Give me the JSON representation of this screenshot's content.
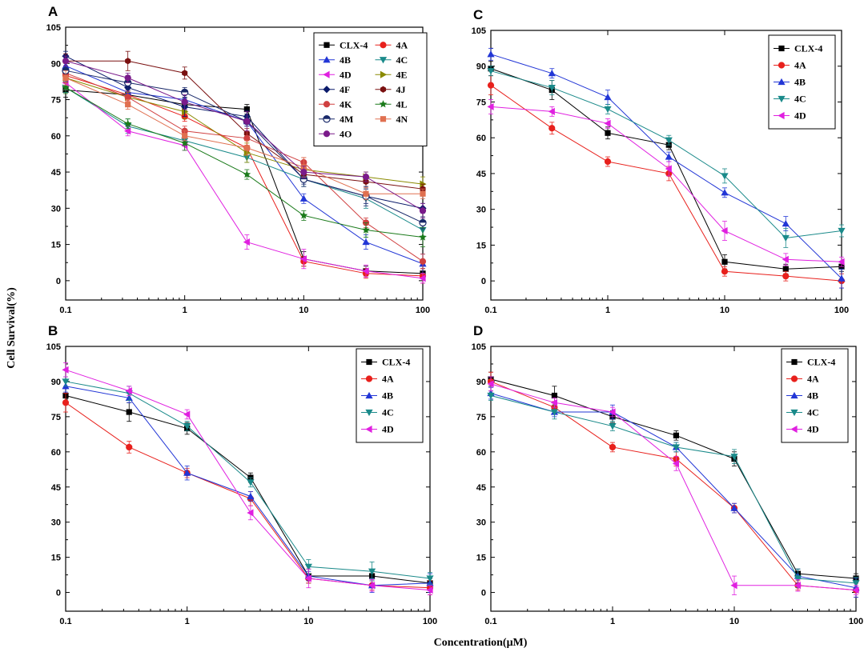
{
  "figure": {
    "ylabel": "Cell Survival(%)",
    "xlabel": "Concentration(μM)"
  },
  "chart_data": [
    {
      "type": "line",
      "panel": "A",
      "x": [
        0.1,
        0.333,
        1,
        3.33,
        10,
        33.3,
        100
      ],
      "xscale": "log",
      "xlim": [
        0.1,
        100
      ],
      "ylim": [
        -8,
        105
      ],
      "xticks": [
        "0.1",
        "1",
        "10",
        "100"
      ],
      "yticks": [
        "0",
        "15",
        "30",
        "45",
        "60",
        "75",
        "90",
        "105"
      ],
      "legend_position": "top-right",
      "legend_columns": 2,
      "series": [
        {
          "name": "CLX-4",
          "color": "#000000",
          "marker": "square",
          "values": [
            79,
            77,
            73,
            71,
            9,
            4,
            3
          ]
        },
        {
          "name": "4A",
          "color": "#e8201c",
          "marker": "circle",
          "values": [
            85,
            77,
            68,
            55,
            8,
            3,
            2
          ]
        },
        {
          "name": "4B",
          "color": "#2236d6",
          "marker": "triangle-up",
          "values": [
            89,
            78,
            75,
            66,
            34,
            16,
            7
          ]
        },
        {
          "name": "4C",
          "color": "#1a8a8a",
          "marker": "triangle-down",
          "values": [
            80,
            64,
            58,
            51,
            42,
            34,
            21
          ]
        },
        {
          "name": "4D",
          "color": "#e020e0",
          "marker": "triangle-left",
          "values": [
            82,
            62,
            56,
            16,
            9,
            4,
            1
          ]
        },
        {
          "name": "4E",
          "color": "#8a8a00",
          "marker": "triangle-right",
          "values": [
            84,
            76,
            70,
            53,
            46,
            43,
            40
          ]
        },
        {
          "name": "4F",
          "color": "#0a1a6a",
          "marker": "diamond",
          "values": [
            93,
            80,
            72,
            68,
            42,
            35,
            30
          ]
        },
        {
          "name": "4J",
          "color": "#7a1010",
          "marker": "hexagon",
          "values": [
            91,
            91,
            86,
            61,
            44,
            41,
            38
          ]
        },
        {
          "name": "4K",
          "color": "#d04040",
          "marker": "circle",
          "values": [
            86,
            76,
            62,
            59,
            49,
            24,
            8
          ]
        },
        {
          "name": "4L",
          "color": "#1a7a1a",
          "marker": "star",
          "values": [
            80,
            65,
            57,
            44,
            27,
            21,
            18
          ]
        },
        {
          "name": "4M",
          "color": "#1a2a6a",
          "marker": "half-circle",
          "values": [
            87,
            82,
            78,
            66,
            42,
            35,
            24
          ]
        },
        {
          "name": "4N",
          "color": "#e07050",
          "marker": "square",
          "values": [
            84,
            73,
            60,
            55,
            47,
            36,
            36
          ]
        },
        {
          "name": "4O",
          "color": "#7a1a8a",
          "marker": "circle",
          "values": [
            91,
            84,
            74,
            66,
            45,
            43,
            29
          ]
        }
      ]
    },
    {
      "type": "line",
      "panel": "B",
      "x": [
        0.1,
        0.333,
        1,
        3.33,
        10,
        33.3,
        100
      ],
      "xscale": "log",
      "xlim": [
        0.1,
        100
      ],
      "ylim": [
        -8,
        105
      ],
      "xticks": [
        "0.1",
        "1",
        "10",
        "100"
      ],
      "yticks": [
        "0",
        "15",
        "30",
        "45",
        "60",
        "75",
        "90",
        "105"
      ],
      "legend_position": "top-right",
      "legend_columns": 1,
      "series": [
        {
          "name": "CLX-4",
          "color": "#000000",
          "marker": "square",
          "values": [
            84,
            77,
            70,
            49,
            7,
            7,
            4
          ]
        },
        {
          "name": "4A",
          "color": "#e8201c",
          "marker": "circle",
          "values": [
            81,
            62,
            51,
            40,
            6,
            3,
            2
          ]
        },
        {
          "name": "4B",
          "color": "#2236d6",
          "marker": "triangle-up",
          "values": [
            88,
            83,
            51,
            41,
            7,
            3,
            4
          ]
        },
        {
          "name": "4C",
          "color": "#1a8a8a",
          "marker": "triangle-down",
          "values": [
            90,
            85,
            71,
            47,
            11,
            9,
            6
          ]
        },
        {
          "name": "4D",
          "color": "#e020e0",
          "marker": "triangle-left",
          "values": [
            95,
            86,
            76,
            34,
            6,
            3,
            1
          ]
        }
      ]
    },
    {
      "type": "line",
      "panel": "C",
      "x": [
        0.1,
        0.333,
        1,
        3.33,
        10,
        33.3,
        100
      ],
      "xscale": "log",
      "xlim": [
        0.1,
        100
      ],
      "ylim": [
        -8,
        105
      ],
      "xticks": [
        "0.1",
        "1",
        "10",
        "100"
      ],
      "yticks": [
        "0",
        "15",
        "30",
        "45",
        "60",
        "75",
        "90",
        "105"
      ],
      "legend_position": "top-right",
      "legend_columns": 1,
      "series": [
        {
          "name": "CLX-4",
          "color": "#000000",
          "marker": "square",
          "values": [
            89,
            80,
            62,
            57,
            8,
            5,
            6
          ]
        },
        {
          "name": "4A",
          "color": "#e8201c",
          "marker": "circle",
          "values": [
            82,
            64,
            50,
            45,
            4,
            2,
            0
          ]
        },
        {
          "name": "4B",
          "color": "#2236d6",
          "marker": "triangle-up",
          "values": [
            95,
            87,
            77,
            52,
            37,
            24,
            1
          ]
        },
        {
          "name": "4C",
          "color": "#1a8a8a",
          "marker": "triangle-down",
          "values": [
            88,
            81,
            72,
            59,
            44,
            18,
            21
          ]
        },
        {
          "name": "4D",
          "color": "#e020e0",
          "marker": "triangle-left",
          "values": [
            73,
            71,
            66,
            47,
            21,
            9,
            8
          ]
        }
      ]
    },
    {
      "type": "line",
      "panel": "D",
      "x": [
        0.1,
        0.333,
        1,
        3.33,
        10,
        33.3,
        100
      ],
      "xscale": "log",
      "xlim": [
        0.1,
        100
      ],
      "ylim": [
        -8,
        105
      ],
      "xticks": [
        "0.1",
        "1",
        "10",
        "100"
      ],
      "yticks": [
        "0",
        "15",
        "30",
        "45",
        "60",
        "75",
        "90",
        "105"
      ],
      "legend_position": "top-right",
      "legend_columns": 1,
      "series": [
        {
          "name": "CLX-4",
          "color": "#000000",
          "marker": "square",
          "values": [
            91,
            84,
            75,
            67,
            57,
            8,
            6
          ]
        },
        {
          "name": "4A",
          "color": "#e8201c",
          "marker": "circle",
          "values": [
            90,
            79,
            62,
            57,
            36,
            3,
            1
          ]
        },
        {
          "name": "4B",
          "color": "#2236d6",
          "marker": "triangle-up",
          "values": [
            85,
            77,
            77,
            62,
            36,
            7,
            2
          ]
        },
        {
          "name": "4C",
          "color": "#1a8a8a",
          "marker": "triangle-down",
          "values": [
            84,
            77,
            71,
            62,
            58,
            6,
            4
          ]
        },
        {
          "name": "4D",
          "color": "#e020e0",
          "marker": "triangle-left",
          "values": [
            89,
            81,
            77,
            55,
            3,
            3,
            1
          ]
        }
      ]
    }
  ]
}
